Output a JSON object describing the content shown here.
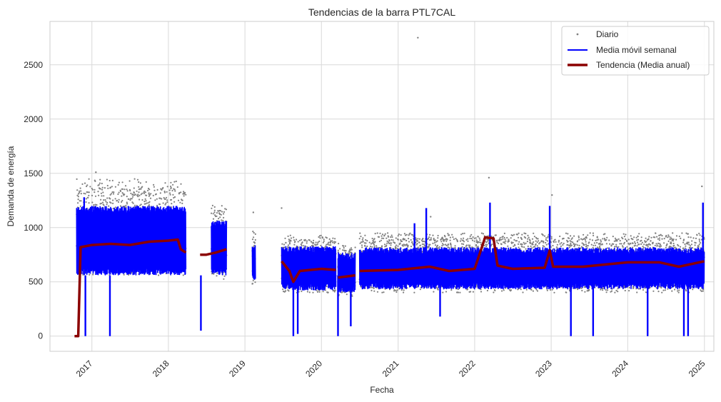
{
  "chart_data": {
    "type": "line",
    "title": "Tendencias de la barra PTL7CAL",
    "xlabel": "Fecha",
    "ylabel": "Demanda de energía",
    "xlim": [
      "2016-06-15",
      "2025-02-15"
    ],
    "ylim": [
      -140,
      2900
    ],
    "xticks": [
      "2017",
      "2018",
      "2019",
      "2020",
      "2021",
      "2022",
      "2023",
      "2024",
      "2025"
    ],
    "xtick_dates": [
      "2017-01-01",
      "2018-01-01",
      "2019-01-01",
      "2020-01-01",
      "2021-01-01",
      "2022-01-01",
      "2023-01-01",
      "2024-01-01",
      "2025-01-01"
    ],
    "yticks": [
      0,
      500,
      1000,
      1500,
      2000,
      2500
    ],
    "ytick_labels": [
      "0",
      "500",
      "1000",
      "1500",
      "2000",
      "2500"
    ],
    "grid": true,
    "legend_position": "upper-right",
    "colors": {
      "daily": "#808080",
      "weekly": "#0000ff",
      "trend": "#8b0000",
      "grid": "#d9d9d9",
      "frame": "#cccccc"
    },
    "series": [
      {
        "name": "Diario",
        "style": "points",
        "segments": [
          {
            "start": "2016-10-20",
            "end": "2018-03-25",
            "low": 560,
            "high": 1450
          },
          {
            "start": "2018-07-25",
            "end": "2018-10-05",
            "low": 520,
            "high": 1230
          },
          {
            "start": "2019-02-05",
            "end": "2019-02-20",
            "low": 480,
            "high": 980
          },
          {
            "start": "2019-06-25",
            "end": "2020-03-10",
            "low": 400,
            "high": 930
          },
          {
            "start": "2020-03-20",
            "end": "2020-06-10",
            "low": 360,
            "high": 860
          },
          {
            "start": "2020-07-01",
            "end": "2024-12-31",
            "low": 400,
            "high": 950
          }
        ],
        "outliers": [
          {
            "x": "2021-04-05",
            "y": 2750
          },
          {
            "x": "2022-03-10",
            "y": 1460
          },
          {
            "x": "2023-01-05",
            "y": 1300
          },
          {
            "x": "2024-12-20",
            "y": 1380
          },
          {
            "x": "2019-06-25",
            "y": 1180
          },
          {
            "x": "2019-02-10",
            "y": 1140
          },
          {
            "x": "2017-01-20",
            "y": 1510
          },
          {
            "x": "2021-06-05",
            "y": 1100
          }
        ]
      },
      {
        "name": "Media móvil semanal",
        "style": "thin-line",
        "segments": [
          {
            "start": "2016-10-20",
            "end": "2018-03-25",
            "low": 560,
            "high": 1200
          },
          {
            "start": "2018-07-25",
            "end": "2018-10-05",
            "low": 560,
            "high": 1070
          },
          {
            "start": "2019-02-05",
            "end": "2019-02-20",
            "low": 510,
            "high": 850
          },
          {
            "start": "2019-06-25",
            "end": "2020-03-10",
            "low": 420,
            "high": 830
          },
          {
            "start": "2020-03-20",
            "end": "2020-06-10",
            "low": 400,
            "high": 770
          },
          {
            "start": "2020-07-01",
            "end": "2024-12-31",
            "low": 430,
            "high": 820
          }
        ],
        "spikes": [
          {
            "x": "2016-10-28",
            "y": 1180
          },
          {
            "x": "2016-11-25",
            "y": 1280
          },
          {
            "x": "2021-03-20",
            "y": 1040
          },
          {
            "x": "2021-05-15",
            "y": 1180
          },
          {
            "x": "2022-03-15",
            "y": 1230
          },
          {
            "x": "2022-12-25",
            "y": 1200
          },
          {
            "x": "2024-12-25",
            "y": 1230
          }
        ],
        "dips": [
          {
            "x": "2016-12-01",
            "y": 0
          },
          {
            "x": "2017-03-28",
            "y": 0
          },
          {
            "x": "2018-06-05",
            "y": 50
          },
          {
            "x": "2019-08-20",
            "y": 0
          },
          {
            "x": "2019-09-10",
            "y": 20
          },
          {
            "x": "2020-03-20",
            "y": 0
          },
          {
            "x": "2020-05-20",
            "y": 90
          },
          {
            "x": "2021-07-20",
            "y": 180
          },
          {
            "x": "2023-04-05",
            "y": 0
          },
          {
            "x": "2023-07-20",
            "y": 0
          },
          {
            "x": "2024-04-05",
            "y": 0
          },
          {
            "x": "2024-09-25",
            "y": 0
          },
          {
            "x": "2024-10-15",
            "y": 0
          }
        ]
      },
      {
        "name": "Tendencia (Media anual)",
        "style": "thick-line",
        "segments": [
          [
            [
              "2016-10-10",
              0
            ],
            [
              "2016-10-28",
              0
            ],
            [
              "2016-11-08",
              820
            ],
            [
              "2017-01-01",
              840
            ],
            [
              "2017-04-01",
              850
            ],
            [
              "2017-07-01",
              840
            ],
            [
              "2017-10-01",
              870
            ],
            [
              "2018-01-01",
              880
            ],
            [
              "2018-02-15",
              890
            ],
            [
              "2018-03-01",
              800
            ],
            [
              "2018-03-25",
              770
            ]
          ],
          [
            [
              "2018-06-01",
              750
            ],
            [
              "2018-07-01",
              750
            ],
            [
              "2018-08-15",
              770
            ],
            [
              "2018-10-05",
              800
            ]
          ],
          [
            [
              "2019-06-25",
              690
            ],
            [
              "2019-08-01",
              600
            ],
            [
              "2019-08-20",
              500
            ],
            [
              "2019-09-20",
              600
            ],
            [
              "2020-01-01",
              620
            ],
            [
              "2020-03-10",
              610
            ]
          ],
          [
            [
              "2020-03-20",
              540
            ],
            [
              "2020-06-10",
              560
            ]
          ],
          [
            [
              "2020-07-01",
              600
            ],
            [
              "2021-01-01",
              610
            ],
            [
              "2021-06-01",
              640
            ],
            [
              "2021-09-01",
              600
            ],
            [
              "2022-01-01",
              620
            ],
            [
              "2022-02-20",
              910
            ],
            [
              "2022-04-01",
              900
            ],
            [
              "2022-04-20",
              650
            ],
            [
              "2022-07-01",
              620
            ],
            [
              "2022-12-01",
              630
            ],
            [
              "2022-12-25",
              790
            ],
            [
              "2023-01-10",
              640
            ],
            [
              "2023-06-01",
              640
            ],
            [
              "2024-01-01",
              680
            ],
            [
              "2024-06-01",
              680
            ],
            [
              "2024-09-01",
              640
            ],
            [
              "2024-12-31",
              690
            ]
          ]
        ]
      }
    ]
  }
}
